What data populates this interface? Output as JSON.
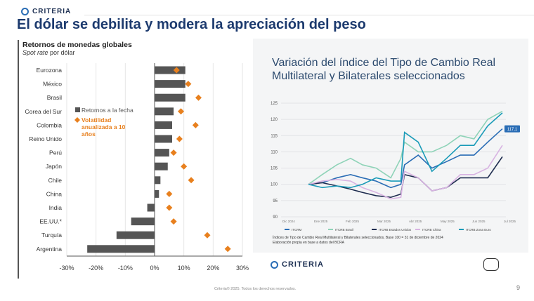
{
  "brand": "CRITERIA",
  "title": "El dólar se debilita y modera la apreciación del peso",
  "left_chart": {
    "title": "Retornos de monedas globales",
    "subtitle_italic": "Spot rate",
    "subtitle_rest": " por dólar"
  },
  "right_chart": {
    "title": "Variación del índice del Tipo de Cambio Real Multilateral y Bilaterales seleccionados",
    "note1": "Índices de Tipo de Cambio Real Multilateral y Bilaterales seleccionados, Base 100 = 31 de diciembre de 2024",
    "note2": "Elaboración propia en base a datos del BCRA",
    "last_value_label": "117,1"
  },
  "footer": "Criteria© 2025. Todos los derechos reservados.",
  "page_number": "9",
  "colors": {
    "bar": "#555555",
    "diamond": "#e8801e",
    "title": "#1c3a6e"
  },
  "chart_data": [
    {
      "type": "bar",
      "categories": [
        "Eurozona",
        "México",
        "Brasil",
        "Corea del Sur",
        "Colombia",
        "Reino Unido",
        "Perú",
        "Japón",
        "Chile",
        "China",
        "India",
        "EE.UU.*",
        "Turquía",
        "Argentina"
      ],
      "series": [
        {
          "name": "Retornos a la fecha",
          "values": [
            10.5,
            10.5,
            10.5,
            6.5,
            6,
            6,
            5,
            4.5,
            2,
            1.5,
            -2.5,
            -8,
            -13,
            -23
          ]
        },
        {
          "name": "Volatilidad anualizada a 10 años",
          "values": [
            7.5,
            11.5,
            15,
            9,
            14,
            8.5,
            6.5,
            10,
            12.5,
            5,
            5,
            6.5,
            18,
            25
          ]
        }
      ],
      "xlim": [
        -30,
        30
      ],
      "xticks": [
        "-30%",
        "-20%",
        "-10%",
        "0%",
        "10%",
        "20%",
        "30%"
      ],
      "grid": true,
      "legend": "center-left"
    },
    {
      "type": "line",
      "x": [
        "2024-12-31",
        "2025-01-15",
        "2025-01-31",
        "2025-02-15",
        "2025-02-28",
        "2025-03-15",
        "2025-03-31",
        "2025-04-11",
        "2025-04-15",
        "2025-04-30",
        "2025-05-15",
        "2025-05-31",
        "2025-06-15",
        "2025-06-30",
        "2025-07-15",
        "2025-07-31"
      ],
      "xticks": [
        "Dic 2024",
        "Ene 2025",
        "Feb 2025",
        "Mar 2025",
        "Abr 2025",
        "May 2025",
        "Jun 2025",
        "Jul 2025"
      ],
      "ylim": [
        90,
        125
      ],
      "yticks": [
        90,
        95,
        100,
        105,
        110,
        115,
        120,
        125
      ],
      "legend": "bottom",
      "grid": true,
      "series": [
        {
          "name": "ITCRM",
          "color": "#2a6db5",
          "values": [
            100,
            100.5,
            102,
            103,
            102,
            101,
            99,
            100,
            106,
            109,
            105,
            107,
            109,
            109,
            113,
            117.1
          ]
        },
        {
          "name": "ITCRB Brasil",
          "color": "#8fd3b8",
          "values": [
            100,
            103,
            106,
            108,
            106,
            105,
            102,
            108,
            113,
            110,
            110,
            112,
            115,
            114,
            120,
            122.5
          ]
        },
        {
          "name": "ITCRB Estados Unidos",
          "color": "#1e2c4f",
          "values": [
            100,
            100.5,
            99.5,
            98.5,
            97.5,
            96.5,
            96,
            97,
            103,
            102,
            98,
            99,
            102,
            102,
            102,
            108.5
          ]
        },
        {
          "name": "ITCRB China",
          "color": "#d8b4e2",
          "values": [
            100,
            101,
            101.5,
            101,
            99,
            97.5,
            95.5,
            96,
            104,
            102,
            98,
            99,
            103,
            103,
            105,
            112
          ]
        },
        {
          "name": "ITCRB Zona Euro",
          "color": "#1a9bb8",
          "values": [
            100,
            99,
            99.5,
            99,
            100,
            102,
            101,
            101,
            116,
            113,
            104,
            108,
            112,
            112,
            118,
            122
          ]
        }
      ]
    }
  ]
}
